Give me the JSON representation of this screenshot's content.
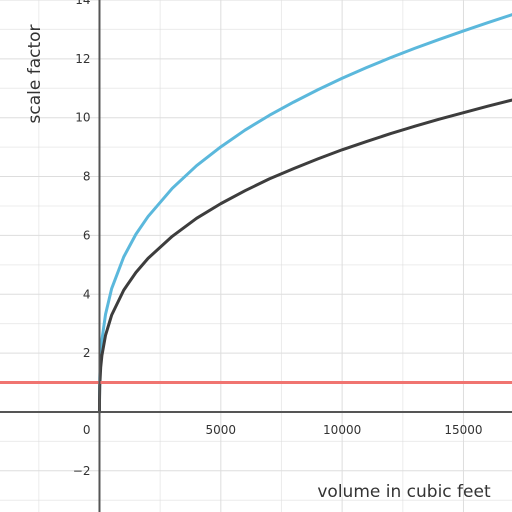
{
  "chart_data": {
    "type": "line",
    "xlabel": "volume in cubic feet",
    "ylabel": "scale factor",
    "xlim": [
      -4100,
      17000
    ],
    "ylim": [
      -3.4,
      14
    ],
    "grid": true,
    "x_ticks": [
      5000,
      10000,
      15000
    ],
    "y_ticks": [
      -2,
      2,
      4,
      6,
      8,
      10,
      12,
      14
    ],
    "origin_label": "0",
    "series": [
      {
        "color": "#5bb8dc",
        "x": [
          0,
          1,
          10,
          50,
          100,
          250,
          500,
          1000,
          1500,
          2000,
          3000,
          4000,
          5000,
          6000,
          7000,
          8000,
          9000,
          10000,
          11000,
          12000,
          13000,
          14000,
          15000,
          16000,
          17000
        ],
        "y": [
          0,
          0.52,
          1.13,
          1.94,
          2.45,
          3.32,
          4.19,
          5.27,
          6.04,
          6.64,
          7.6,
          8.37,
          9.01,
          9.58,
          10.08,
          10.53,
          10.95,
          11.34,
          11.7,
          12.04,
          12.36,
          12.66,
          12.95,
          13.23,
          13.5
        ]
      },
      {
        "color": "#3d3d3d",
        "x": [
          0,
          1,
          10,
          50,
          100,
          250,
          500,
          1000,
          1500,
          2000,
          3000,
          4000,
          5000,
          6000,
          7000,
          8000,
          9000,
          10000,
          11000,
          12000,
          13000,
          14000,
          15000,
          16000,
          17000
        ],
        "y": [
          0,
          0.41,
          0.89,
          1.52,
          1.92,
          2.61,
          3.29,
          4.14,
          4.74,
          5.22,
          5.97,
          6.58,
          7.08,
          7.52,
          7.92,
          8.27,
          8.6,
          8.91,
          9.19,
          9.46,
          9.71,
          9.95,
          10.17,
          10.39,
          10.6
        ]
      },
      {
        "color": "#f07470",
        "x": [
          -4100,
          17000
        ],
        "y": [
          1,
          1
        ]
      }
    ]
  }
}
